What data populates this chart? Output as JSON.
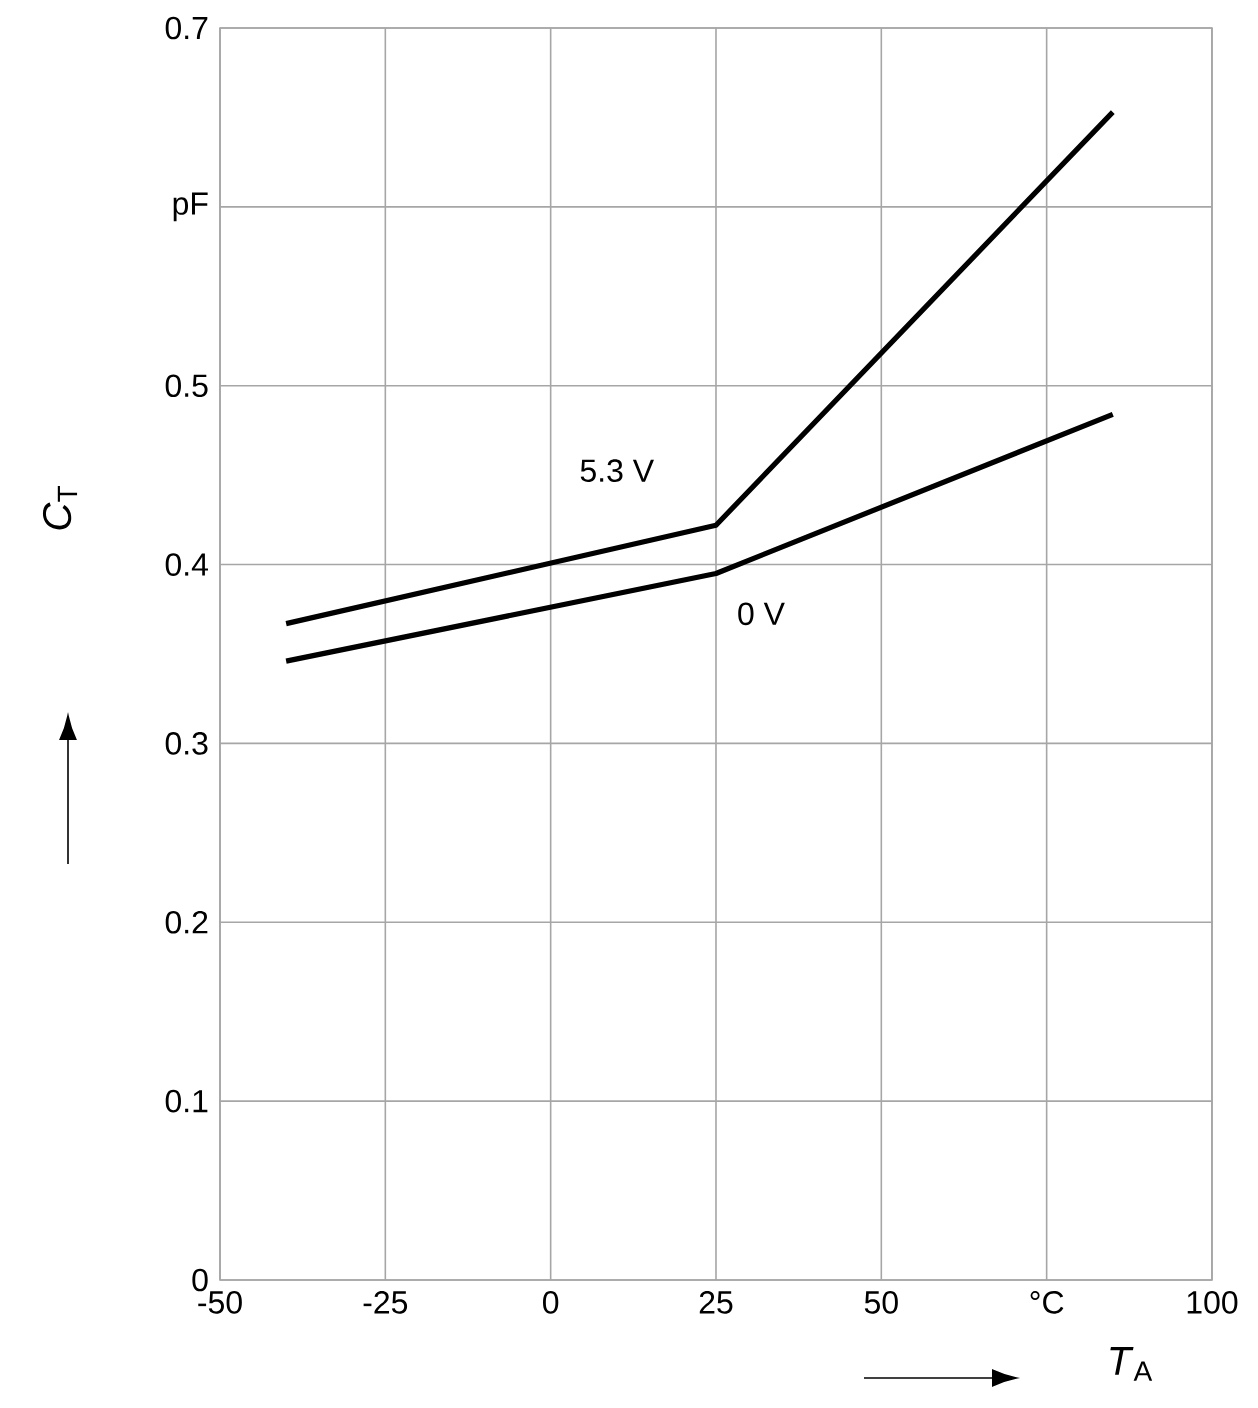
{
  "chart_data": {
    "type": "line",
    "xlabel": "*T*$_{A}$",
    "ylabel": "*C*$_{T}$",
    "x": [
      -40,
      25,
      85
    ],
    "series": [
      {
        "name": "5.3 V",
        "color": "#000000",
        "values": [
          0.367,
          0.422,
          0.653
        ]
      },
      {
        "name": "0 V",
        "color": "#000000",
        "values": [
          0.346,
          0.395,
          0.484
        ]
      }
    ],
    "xlim": [
      -50,
      100
    ],
    "ylim": [
      0,
      0.7
    ],
    "xticks": [
      -50,
      -25,
      0,
      25,
      50,
      {
        "value": 75,
        "label": "°C"
      },
      100
    ],
    "yticks": [
      0,
      0.1,
      0.2,
      0.3,
      0.4,
      0.5,
      {
        "value": 0.6,
        "label": "pF"
      },
      0.7
    ],
    "grid": true,
    "legend": false,
    "marker": "none",
    "line_style": "solid"
  }
}
